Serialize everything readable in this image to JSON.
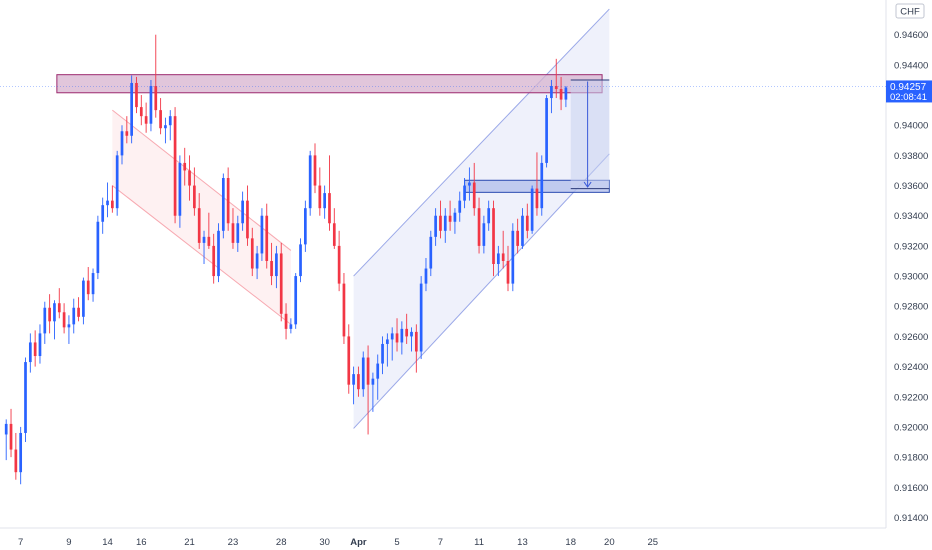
{
  "chart_data": {
    "type": "candlestick",
    "currency": "CHF",
    "price_axis": {
      "ticks": [
        "0.94600",
        "0.94400",
        "0.94000",
        "0.93800",
        "0.93600",
        "0.93400",
        "0.93200",
        "0.93000",
        "0.92800",
        "0.92600",
        "0.92400",
        "0.92200",
        "0.92000",
        "0.91800",
        "0.91600",
        "0.91400"
      ],
      "range": [
        0.9133,
        0.9483
      ]
    },
    "time_axis": {
      "ticks": [
        {
          "label": "7",
          "i": 3
        },
        {
          "label": "9",
          "i": 13
        },
        {
          "label": "14",
          "i": 21
        },
        {
          "label": "16",
          "i": 28
        },
        {
          "label": "21",
          "i": 38
        },
        {
          "label": "23",
          "i": 47
        },
        {
          "label": "28",
          "i": 57
        },
        {
          "label": "30",
          "i": 66
        },
        {
          "label": "Apr",
          "i": 73,
          "strong": true
        },
        {
          "label": "5",
          "i": 81
        },
        {
          "label": "7",
          "i": 90
        },
        {
          "label": "11",
          "i": 98
        },
        {
          "label": "13",
          "i": 107
        },
        {
          "label": "18",
          "i": 117
        },
        {
          "label": "20",
          "i": 125
        },
        {
          "label": "25",
          "i": 134
        }
      ]
    },
    "last_price": {
      "value": "0.94257",
      "countdown": "02:08:41"
    },
    "colors": {
      "up": "#2962ff",
      "down": "#f23645",
      "red_zone": "#9c2a6e",
      "blue_zone": "#2a4ab0"
    },
    "candles": [
      [
        0.9195,
        0.9205,
        0.9178,
        0.9202
      ],
      [
        0.9202,
        0.9212,
        0.918,
        0.9185
      ],
      [
        0.9185,
        0.9196,
        0.9165,
        0.917
      ],
      [
        0.917,
        0.92,
        0.9162,
        0.9196
      ],
      [
        0.9196,
        0.9246,
        0.919,
        0.9243
      ],
      [
        0.9243,
        0.9262,
        0.9236,
        0.9256
      ],
      [
        0.9256,
        0.9264,
        0.924,
        0.9247
      ],
      [
        0.9247,
        0.9268,
        0.9242,
        0.9262
      ],
      [
        0.9262,
        0.9283,
        0.9255,
        0.9279
      ],
      [
        0.9279,
        0.9288,
        0.9262,
        0.927
      ],
      [
        0.927,
        0.9284,
        0.9258,
        0.9282
      ],
      [
        0.9282,
        0.9292,
        0.9272,
        0.9276
      ],
      [
        0.9276,
        0.9282,
        0.9262,
        0.9266
      ],
      [
        0.9266,
        0.9274,
        0.9255,
        0.9268
      ],
      [
        0.9268,
        0.9285,
        0.9262,
        0.9279
      ],
      [
        0.9279,
        0.9286,
        0.927,
        0.9273
      ],
      [
        0.9273,
        0.9299,
        0.9268,
        0.9297
      ],
      [
        0.9297,
        0.9306,
        0.9284,
        0.9288
      ],
      [
        0.9288,
        0.9305,
        0.9283,
        0.9302
      ],
      [
        0.9302,
        0.934,
        0.9298,
        0.9336
      ],
      [
        0.9336,
        0.9352,
        0.9328,
        0.9347
      ],
      [
        0.9347,
        0.9362,
        0.9339,
        0.935
      ],
      [
        0.935,
        0.936,
        0.9342,
        0.9345
      ],
      [
        0.9345,
        0.9383,
        0.934,
        0.938
      ],
      [
        0.938,
        0.94,
        0.9374,
        0.9396
      ],
      [
        0.9396,
        0.9406,
        0.9388,
        0.9393
      ],
      [
        0.9393,
        0.9433,
        0.9388,
        0.9428
      ],
      [
        0.9428,
        0.9432,
        0.9408,
        0.9412
      ],
      [
        0.9412,
        0.942,
        0.94,
        0.9406
      ],
      [
        0.9406,
        0.9415,
        0.9395,
        0.9401
      ],
      [
        0.9401,
        0.943,
        0.9396,
        0.9426
      ],
      [
        0.9426,
        0.946,
        0.9405,
        0.941
      ],
      [
        0.941,
        0.9418,
        0.9394,
        0.9398
      ],
      [
        0.9398,
        0.9405,
        0.9388,
        0.94
      ],
      [
        0.94,
        0.941,
        0.939,
        0.9406
      ],
      [
        0.9406,
        0.9412,
        0.9335,
        0.934
      ],
      [
        0.934,
        0.938,
        0.9332,
        0.9375
      ],
      [
        0.9375,
        0.9385,
        0.936,
        0.937
      ],
      [
        0.937,
        0.938,
        0.935,
        0.936
      ],
      [
        0.936,
        0.9372,
        0.934,
        0.9345
      ],
      [
        0.9345,
        0.9355,
        0.9318,
        0.9322
      ],
      [
        0.9322,
        0.933,
        0.9308,
        0.9326
      ],
      [
        0.9326,
        0.9342,
        0.9318,
        0.932
      ],
      [
        0.932,
        0.9328,
        0.9295,
        0.93
      ],
      [
        0.93,
        0.9335,
        0.9296,
        0.933
      ],
      [
        0.933,
        0.9368,
        0.9325,
        0.9365
      ],
      [
        0.9365,
        0.9372,
        0.933,
        0.9335
      ],
      [
        0.9335,
        0.9345,
        0.9318,
        0.9322
      ],
      [
        0.9322,
        0.934,
        0.9316,
        0.9335
      ],
      [
        0.9335,
        0.9356,
        0.933,
        0.935
      ],
      [
        0.935,
        0.936,
        0.932,
        0.9325
      ],
      [
        0.9325,
        0.9332,
        0.93,
        0.9305
      ],
      [
        0.9305,
        0.932,
        0.9298,
        0.9315
      ],
      [
        0.9315,
        0.9345,
        0.931,
        0.934
      ],
      [
        0.934,
        0.9348,
        0.9305,
        0.931
      ],
      [
        0.931,
        0.9322,
        0.9294,
        0.93
      ],
      [
        0.93,
        0.932,
        0.9292,
        0.9315
      ],
      [
        0.9315,
        0.9322,
        0.927,
        0.9275
      ],
      [
        0.9275,
        0.9282,
        0.9258,
        0.9265
      ],
      [
        0.9265,
        0.9272,
        0.9262,
        0.9268
      ],
      [
        0.9268,
        0.9302,
        0.9265,
        0.93
      ],
      [
        0.93,
        0.9325,
        0.9296,
        0.9321
      ],
      [
        0.9321,
        0.935,
        0.9316,
        0.9345
      ],
      [
        0.9345,
        0.9383,
        0.934,
        0.938
      ],
      [
        0.938,
        0.9388,
        0.9355,
        0.936
      ],
      [
        0.936,
        0.9372,
        0.934,
        0.9345
      ],
      [
        0.9345,
        0.936,
        0.9338,
        0.9355
      ],
      [
        0.9355,
        0.938,
        0.933,
        0.9335
      ],
      [
        0.9335,
        0.9345,
        0.9318,
        0.932
      ],
      [
        0.932,
        0.933,
        0.929,
        0.9295
      ],
      [
        0.9295,
        0.9302,
        0.9255,
        0.926
      ],
      [
        0.926,
        0.9268,
        0.9222,
        0.9228
      ],
      [
        0.9228,
        0.924,
        0.9215,
        0.9235
      ],
      [
        0.9235,
        0.924,
        0.922,
        0.9225
      ],
      [
        0.9225,
        0.925,
        0.922,
        0.9246
      ],
      [
        0.9246,
        0.9254,
        0.9195,
        0.9228
      ],
      [
        0.9228,
        0.9236,
        0.921,
        0.9232
      ],
      [
        0.9232,
        0.9248,
        0.9218,
        0.9242
      ],
      [
        0.9242,
        0.926,
        0.9235,
        0.9255
      ],
      [
        0.9255,
        0.9262,
        0.924,
        0.9258
      ],
      [
        0.9258,
        0.9266,
        0.9244,
        0.9262
      ],
      [
        0.9262,
        0.9272,
        0.925,
        0.9256
      ],
      [
        0.9256,
        0.927,
        0.9248,
        0.9265
      ],
      [
        0.9265,
        0.9275,
        0.9255,
        0.926
      ],
      [
        0.926,
        0.9266,
        0.925,
        0.9263
      ],
      [
        0.9263,
        0.9268,
        0.9236,
        0.925
      ],
      [
        0.925,
        0.93,
        0.9245,
        0.9295
      ],
      [
        0.9295,
        0.9312,
        0.929,
        0.9305
      ],
      [
        0.9305,
        0.933,
        0.93,
        0.9326
      ],
      [
        0.9326,
        0.9345,
        0.932,
        0.934
      ],
      [
        0.934,
        0.935,
        0.9325,
        0.933
      ],
      [
        0.933,
        0.9345,
        0.9322,
        0.934
      ],
      [
        0.934,
        0.935,
        0.933,
        0.9336
      ],
      [
        0.9336,
        0.9345,
        0.9328,
        0.9342
      ],
      [
        0.9342,
        0.9356,
        0.9336,
        0.935
      ],
      [
        0.935,
        0.9365,
        0.9345,
        0.936
      ],
      [
        0.936,
        0.9372,
        0.935,
        0.9362
      ],
      [
        0.9362,
        0.9375,
        0.934,
        0.9345
      ],
      [
        0.9345,
        0.9352,
        0.9315,
        0.932
      ],
      [
        0.932,
        0.934,
        0.9315,
        0.9335
      ],
      [
        0.9335,
        0.935,
        0.933,
        0.9345
      ],
      [
        0.9345,
        0.935,
        0.93,
        0.9308
      ],
      [
        0.9308,
        0.932,
        0.93,
        0.9315
      ],
      [
        0.9315,
        0.933,
        0.9305,
        0.931
      ],
      [
        0.931,
        0.932,
        0.929,
        0.9295
      ],
      [
        0.9295,
        0.9335,
        0.929,
        0.933
      ],
      [
        0.933,
        0.9338,
        0.9315,
        0.932
      ],
      [
        0.932,
        0.9345,
        0.9318,
        0.934
      ],
      [
        0.934,
        0.9348,
        0.9325,
        0.933
      ],
      [
        0.933,
        0.936,
        0.9328,
        0.9358
      ],
      [
        0.9358,
        0.9382,
        0.934,
        0.9345
      ],
      [
        0.9345,
        0.938,
        0.934,
        0.9375
      ],
      [
        0.9375,
        0.942,
        0.9372,
        0.9418
      ],
      [
        0.9418,
        0.943,
        0.9408,
        0.9426
      ],
      [
        0.9426,
        0.9444,
        0.9418,
        0.9424
      ],
      [
        0.9424,
        0.9432,
        0.941,
        0.9417
      ],
      [
        0.9417,
        0.9426,
        0.9412,
        0.9425
      ]
    ]
  },
  "drawings": {
    "resistance_zone": {
      "i0": 10.5,
      "i1": 123.5,
      "p_top": 0.94335,
      "p_bot": 0.94215
    },
    "support_zone": {
      "i0": 95,
      "i1": 125,
      "p_top": 0.93635,
      "p_bot": 0.93555
    },
    "falling_channel": {
      "i0": 22,
      "i1": 59,
      "upper": [
        0.941,
        0.9317
      ],
      "lower": [
        0.936,
        0.9268
      ]
    },
    "rising_channel": {
      "i0": 72,
      "i1": 125,
      "upper": [
        0.93,
        0.9477
      ],
      "lower": [
        0.9199,
        0.9381
      ]
    },
    "projection_box": {
      "i0": 117,
      "i1": 125,
      "p_top": 0.943,
      "p_bot": 0.9358
    },
    "target_arrow": {
      "i": 120.5,
      "p0": 0.9429,
      "p1": 0.9359
    }
  }
}
